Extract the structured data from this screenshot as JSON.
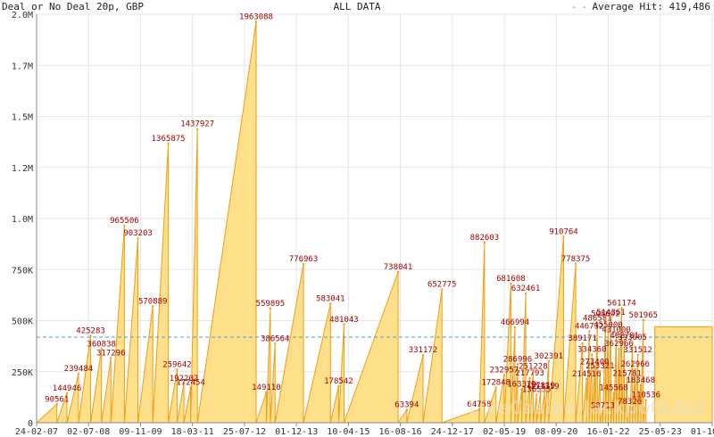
{
  "header": {
    "left": "Deal or No Deal 20p, GBP",
    "center": "ALL DATA",
    "avg_label": "Average Hit: 419,486"
  },
  "watermark": "LiveCasino-Jackpots.biz",
  "colors": {
    "fill": "#fde089",
    "line": "#f39c12",
    "peak_label": "#a00000",
    "avg_line": "#4aa3c8",
    "grid": "#e6e6e6",
    "axis_text": "#333333"
  },
  "chart_data": {
    "type": "area",
    "title": "Deal or No Deal 20p, GBP",
    "xlabel": "",
    "ylabel": "",
    "ylim": [
      0,
      2000000
    ],
    "y_ticks": [
      0,
      250000,
      500000,
      750000,
      1000000,
      1250000,
      1500000,
      1750000,
      2000000
    ],
    "y_tick_labels": [
      "0",
      "250K",
      "500K",
      "750K",
      "1.0M",
      "1.2M",
      "1.5M",
      "1.7M",
      "2.0M"
    ],
    "x_tick_labels": [
      "24-02-07",
      "02-07-08",
      "09-11-09",
      "18-03-11",
      "25-07-12",
      "01-12-13",
      "10-04-15",
      "16-08-16",
      "24-12-17",
      "02-05-19",
      "08-09-20",
      "16-01-22",
      "25-05-23",
      "01-10-24"
    ],
    "average_hit": 419486,
    "grid": true,
    "peaks": [
      {
        "t": 0.03,
        "v": 90561,
        "label": "90561"
      },
      {
        "t": 0.045,
        "v": 144946,
        "label": "144946"
      },
      {
        "t": 0.062,
        "v": 239484,
        "label": "239484"
      },
      {
        "t": 0.08,
        "v": 425283,
        "label": "425283"
      },
      {
        "t": 0.096,
        "v": 360838,
        "label": "360838"
      },
      {
        "t": 0.11,
        "v": 317296,
        "label": "317296"
      },
      {
        "t": 0.13,
        "v": 965506,
        "label": "965506"
      },
      {
        "t": 0.15,
        "v": 903203,
        "label": "903203"
      },
      {
        "t": 0.172,
        "v": 570889,
        "label": "570889"
      },
      {
        "t": 0.195,
        "v": 1365875,
        "label": "1365875"
      },
      {
        "t": 0.208,
        "v": 259642,
        "label": "259642"
      },
      {
        "t": 0.218,
        "v": 192202,
        "label": "192202"
      },
      {
        "t": 0.228,
        "v": 172454,
        "label": "172454"
      },
      {
        "t": 0.238,
        "v": 1437927,
        "label": "1437927"
      },
      {
        "t": 0.325,
        "v": 1963088,
        "label": "1963088"
      },
      {
        "t": 0.34,
        "v": 149110,
        "label": "149110"
      },
      {
        "t": 0.346,
        "v": 559895,
        "label": "559895"
      },
      {
        "t": 0.353,
        "v": 386564,
        "label": "386564"
      },
      {
        "t": 0.395,
        "v": 776963,
        "label": "776963"
      },
      {
        "t": 0.435,
        "v": 583041,
        "label": "583041"
      },
      {
        "t": 0.447,
        "v": 178542,
        "label": "178542"
      },
      {
        "t": 0.455,
        "v": 481043,
        "label": "481043"
      },
      {
        "t": 0.535,
        "v": 738041,
        "label": "738041"
      },
      {
        "t": 0.548,
        "v": 63394,
        "label": "63394"
      },
      {
        "t": 0.572,
        "v": 331172,
        "label": "331172"
      },
      {
        "t": 0.6,
        "v": 652775,
        "label": "652775"
      },
      {
        "t": 0.655,
        "v": 64758,
        "label": "64758"
      },
      {
        "t": 0.663,
        "v": 882603,
        "label": "882603"
      },
      {
        "t": 0.68,
        "v": 172848,
        "label": "172848"
      },
      {
        "t": 0.692,
        "v": 232957,
        "label": "232957"
      },
      {
        "t": 0.702,
        "v": 681608,
        "label": "681608"
      },
      {
        "t": 0.708,
        "v": 466994,
        "label": "466994"
      },
      {
        "t": 0.712,
        "v": 286996,
        "label": "286996"
      },
      {
        "t": 0.718,
        "v": 163329,
        "label": "163329"
      },
      {
        "t": 0.724,
        "v": 632461,
        "label": "632461"
      },
      {
        "t": 0.73,
        "v": 217793,
        "label": "217793"
      },
      {
        "t": 0.735,
        "v": 251228,
        "label": "251228"
      },
      {
        "t": 0.74,
        "v": 136535,
        "label": "136535"
      },
      {
        "t": 0.746,
        "v": 157819,
        "label": "157819"
      },
      {
        "t": 0.752,
        "v": 153319,
        "label": "153319"
      },
      {
        "t": 0.758,
        "v": 302391,
        "label": "302391"
      },
      {
        "t": 0.78,
        "v": 910764,
        "label": "910764"
      },
      {
        "t": 0.798,
        "v": 778375,
        "label": "778375"
      },
      {
        "t": 0.808,
        "v": 389171,
        "label": "389171"
      },
      {
        "t": 0.814,
        "v": 214516,
        "label": "214516"
      },
      {
        "t": 0.818,
        "v": 446732,
        "label": "446732"
      },
      {
        "t": 0.822,
        "v": 334360,
        "label": "334360"
      },
      {
        "t": 0.826,
        "v": 273400,
        "label": "273400"
      },
      {
        "t": 0.83,
        "v": 486581,
        "label": "486581"
      },
      {
        "t": 0.834,
        "v": 253321,
        "label": "253321"
      },
      {
        "t": 0.838,
        "v": 58713,
        "label": "58713"
      },
      {
        "t": 0.842,
        "v": 508602,
        "label": "508602"
      },
      {
        "t": 0.846,
        "v": 455000,
        "label": "455000"
      },
      {
        "t": 0.85,
        "v": 514361,
        "label": "514361"
      },
      {
        "t": 0.854,
        "v": 145568,
        "label": "145568"
      },
      {
        "t": 0.858,
        "v": 431000,
        "label": "431000"
      },
      {
        "t": 0.862,
        "v": 362960,
        "label": "362960"
      },
      {
        "t": 0.866,
        "v": 561174,
        "label": "561174"
      },
      {
        "t": 0.87,
        "v": 402781,
        "label": "402781"
      },
      {
        "t": 0.874,
        "v": 215781,
        "label": "215781"
      },
      {
        "t": 0.878,
        "v": 78326,
        "label": "78326"
      },
      {
        "t": 0.882,
        "v": 393605,
        "label": "393605"
      },
      {
        "t": 0.886,
        "v": 262966,
        "label": "262966"
      },
      {
        "t": 0.89,
        "v": 331512,
        "label": "331512"
      },
      {
        "t": 0.894,
        "v": 183468,
        "label": "183468"
      },
      {
        "t": 0.898,
        "v": 501965,
        "label": "501965"
      },
      {
        "t": 0.902,
        "v": 110536,
        "label": "110536"
      }
    ],
    "final_plateau": {
      "t_start": 0.915,
      "t_end": 1.0,
      "v": 470000
    }
  }
}
